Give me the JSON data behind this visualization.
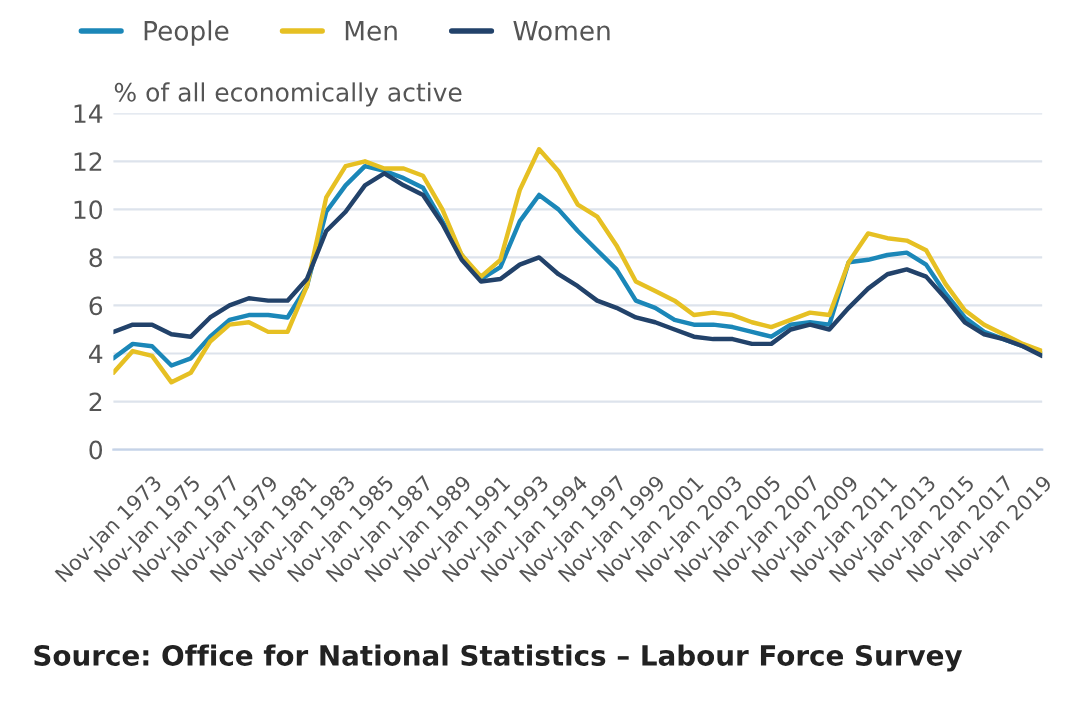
{
  "chart_data": {
    "type": "line",
    "ylabel": "% of all economically active",
    "annotations": [
      "Source: Office for National Statistics – Labour Force Survey"
    ],
    "categories": [
      null,
      null,
      "Nov-Jan 1973",
      null,
      "Nov-Jan 1975",
      null,
      "Nov-Jan 1977",
      null,
      "Nov-Jan 1979",
      null,
      "Nov-Jan 1981",
      null,
      "Nov-Jan 1983",
      null,
      "Nov-Jan 1985",
      null,
      "Nov-Jan 1987",
      null,
      "Nov-Jan 1989",
      null,
      "Nov-Jan 1991",
      null,
      "Nov-Jan 1993",
      null,
      "Nov-Jan 1994",
      null,
      "Nov-Jan 1997",
      null,
      "Nov-Jan 1999",
      null,
      "Nov-Jan 2001",
      null,
      "Nov-Jan 2003",
      null,
      "Nov-Jan 2005",
      null,
      "Nov-Jan 2007",
      null,
      "Nov-Jan 2009",
      null,
      "Nov-Jan 2011",
      null,
      "Nov-Jan 2013",
      null,
      "Nov-Jan 2015",
      null,
      "Nov-Jan 2017",
      null,
      "Nov-Jan 2019"
    ],
    "ylim": [
      0,
      14
    ],
    "yticks": [
      0,
      2,
      4,
      6,
      8,
      10,
      12,
      14
    ],
    "grid": "y",
    "legend": "top left",
    "marker": "none",
    "line_style": "solid",
    "series": [
      {
        "name": "People",
        "color": "#1b87b8",
        "values": [
          3.8,
          4.4,
          4.3,
          3.5,
          3.8,
          4.7,
          5.4,
          5.6,
          5.6,
          5.5,
          6.8,
          9.9,
          11.0,
          11.8,
          11.6,
          11.3,
          10.9,
          9.5,
          8.1,
          7.1,
          7.6,
          9.5,
          10.6,
          10.0,
          9.1,
          8.3,
          7.5,
          6.2,
          5.9,
          5.4,
          5.2,
          5.2,
          5.1,
          4.9,
          4.7,
          5.2,
          5.3,
          5.2,
          7.8,
          7.9,
          8.1,
          8.2,
          7.7,
          6.5,
          5.5,
          4.9,
          4.6,
          4.3,
          4.0
        ]
      },
      {
        "name": "Men",
        "color": "#e6c023",
        "values": [
          3.2,
          4.1,
          3.9,
          2.8,
          3.2,
          4.5,
          5.2,
          5.3,
          4.9,
          4.9,
          6.8,
          10.5,
          11.8,
          12.0,
          11.7,
          11.7,
          11.4,
          10.0,
          8.1,
          7.2,
          7.9,
          10.8,
          12.5,
          11.6,
          10.2,
          9.7,
          8.5,
          7.0,
          6.6,
          6.2,
          5.6,
          5.7,
          5.6,
          5.3,
          5.1,
          5.4,
          5.7,
          5.6,
          7.8,
          9.0,
          8.8,
          8.7,
          8.3,
          6.9,
          5.8,
          5.2,
          4.8,
          4.4,
          4.1
        ]
      },
      {
        "name": "Women",
        "color": "#22426a",
        "values": [
          4.9,
          5.2,
          5.2,
          4.8,
          4.7,
          5.5,
          6.0,
          6.3,
          6.2,
          6.2,
          7.1,
          9.1,
          9.9,
          11.0,
          11.5,
          11.0,
          10.6,
          9.4,
          7.9,
          7.0,
          7.1,
          7.7,
          8.0,
          7.3,
          6.8,
          6.2,
          5.9,
          5.5,
          5.3,
          5.0,
          4.7,
          4.6,
          4.6,
          4.4,
          4.4,
          5.0,
          5.2,
          5.0,
          5.9,
          6.7,
          7.3,
          7.5,
          7.2,
          6.3,
          5.3,
          4.8,
          4.6,
          4.3,
          3.9
        ]
      }
    ]
  }
}
